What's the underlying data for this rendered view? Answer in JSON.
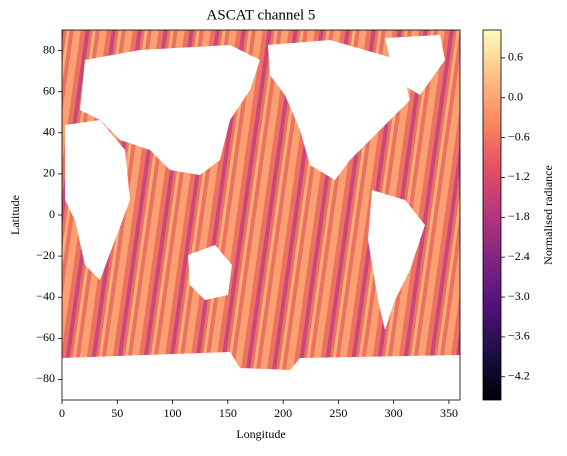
{
  "chart_data": {
    "type": "heatmap",
    "title": "ASCAT channel 5",
    "xlabel": "Longitude",
    "ylabel": "Latitude",
    "colorbar_label": "Normalised radiance",
    "colormap": "magma",
    "xlim": [
      0,
      360
    ],
    "xticks": [
      0,
      50,
      100,
      150,
      200,
      250,
      300,
      350
    ],
    "ylim": [
      -90,
      90
    ],
    "yticks": [
      {
        "value": -80,
        "label": "−80"
      },
      {
        "value": -60,
        "label": "−60"
      },
      {
        "value": -40,
        "label": "−40"
      },
      {
        "value": -20,
        "label": "−20"
      },
      0,
      20,
      40,
      60,
      80
    ],
    "zlim": [
      -4.55,
      1.02
    ],
    "zticks": [
      {
        "value": -4.2,
        "label": "−4.2"
      },
      {
        "value": -3.6,
        "label": "−3.6"
      },
      {
        "value": -3.0,
        "label": "−3.0"
      },
      {
        "value": -2.4,
        "label": "−2.4"
      },
      {
        "value": -1.8,
        "label": "−1.8"
      },
      {
        "value": -1.2,
        "label": "−1.2"
      },
      {
        "value": -0.6,
        "label": "−0.6"
      },
      {
        "value": 0,
        "label": "0.0"
      },
      0.6
    ]
  }
}
